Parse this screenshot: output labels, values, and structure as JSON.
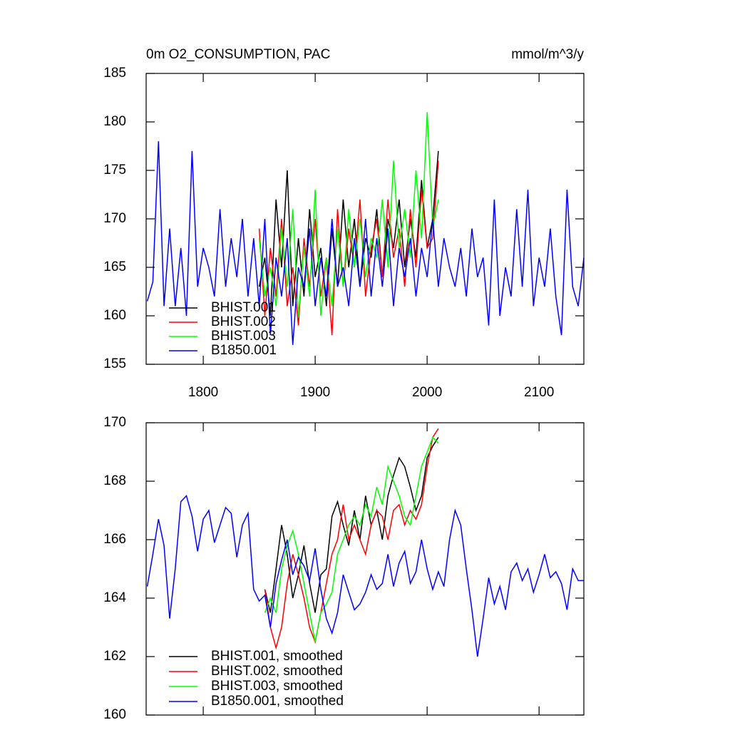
{
  "chart_data": [
    {
      "type": "line",
      "title": "0m O2_CONSUMPTION, PAC",
      "units": "mmol/m^3/y",
      "xlim": [
        1749,
        2140
      ],
      "xticks": [
        1800,
        1900,
        2000,
        2100
      ],
      "xtick_labels": true,
      "ylim": [
        155,
        185
      ],
      "yticks": [
        155,
        160,
        165,
        170,
        175,
        180,
        185
      ],
      "legend": "lower left",
      "series": [
        {
          "name": "BHIST.001",
          "color": "#000000",
          "x": [
            1850,
            1855,
            1860,
            1865,
            1870,
            1875,
            1880,
            1885,
            1890,
            1895,
            1900,
            1905,
            1910,
            1915,
            1920,
            1925,
            1930,
            1935,
            1940,
            1945,
            1950,
            1955,
            1960,
            1965,
            1970,
            1975,
            1980,
            1985,
            1990,
            1995,
            2000,
            2005,
            2010
          ],
          "values": [
            163,
            166,
            160,
            172,
            165,
            175,
            161,
            168,
            162,
            171,
            164,
            167,
            161,
            169,
            163,
            172,
            165,
            170,
            163,
            168,
            166,
            171,
            164,
            170,
            167,
            172,
            165,
            170,
            166,
            174,
            167,
            170,
            177
          ]
        },
        {
          "name": "BHIST.002",
          "color": "#ff0000",
          "x": [
            1850,
            1855,
            1860,
            1865,
            1870,
            1875,
            1880,
            1885,
            1890,
            1895,
            1900,
            1905,
            1910,
            1915,
            1920,
            1925,
            1930,
            1935,
            1940,
            1945,
            1950,
            1955,
            1960,
            1965,
            1970,
            1975,
            1980,
            1985,
            1990,
            1995,
            2000,
            2005,
            2010
          ],
          "values": [
            169,
            160,
            167,
            162,
            170,
            161,
            165,
            159,
            168,
            163,
            170,
            162,
            166,
            158,
            171,
            163,
            169,
            165,
            172,
            162,
            167,
            170,
            164,
            172,
            166,
            169,
            163,
            171,
            165,
            173,
            167,
            168,
            176
          ]
        },
        {
          "name": "BHIST.003",
          "color": "#00ff00",
          "x": [
            1850,
            1855,
            1860,
            1865,
            1870,
            1875,
            1880,
            1885,
            1890,
            1895,
            1900,
            1905,
            1910,
            1915,
            1920,
            1925,
            1930,
            1935,
            1940,
            1945,
            1950,
            1955,
            1960,
            1965,
            1970,
            1975,
            1980,
            1985,
            1990,
            1995,
            2000,
            2005,
            2010
          ],
          "values": [
            168,
            162,
            165,
            161,
            169,
            163,
            171,
            160,
            167,
            162,
            173,
            160,
            166,
            161,
            169,
            163,
            171,
            165,
            170,
            164,
            168,
            166,
            172,
            165,
            176,
            167,
            171,
            166,
            175,
            168,
            181,
            169,
            172
          ]
        },
        {
          "name": "B1850.001",
          "color": "#0000ff",
          "x": [
            1750,
            1755,
            1760,
            1765,
            1770,
            1775,
            1780,
            1785,
            1790,
            1795,
            1800,
            1805,
            1810,
            1815,
            1820,
            1825,
            1830,
            1835,
            1840,
            1845,
            1850,
            1855,
            1860,
            1865,
            1870,
            1875,
            1880,
            1885,
            1890,
            1895,
            1900,
            1905,
            1910,
            1915,
            1920,
            1925,
            1930,
            1935,
            1940,
            1945,
            1950,
            1955,
            1960,
            1965,
            1970,
            1975,
            1980,
            1985,
            1990,
            1995,
            2000,
            2005,
            2010,
            2015,
            2020,
            2025,
            2030,
            2035,
            2040,
            2045,
            2050,
            2055,
            2060,
            2065,
            2070,
            2075,
            2080,
            2085,
            2090,
            2095,
            2100,
            2105,
            2110,
            2115,
            2120,
            2125,
            2130,
            2135,
            2140
          ],
          "values": [
            161.5,
            163.5,
            178,
            161,
            169,
            161,
            167,
            160,
            177,
            163,
            167,
            165,
            162,
            171,
            163,
            168,
            164,
            170,
            162,
            168,
            161,
            170,
            158,
            166,
            162,
            168,
            157,
            165,
            163,
            169,
            161,
            166,
            162,
            170,
            163,
            165,
            161,
            168,
            163,
            170,
            162,
            168,
            163,
            169,
            161,
            167,
            164,
            168,
            162,
            167,
            164,
            170,
            163,
            168,
            165,
            163,
            167,
            162,
            169,
            164,
            166,
            159,
            172,
            160,
            165,
            162,
            171,
            163,
            173,
            161,
            166,
            163,
            169,
            162,
            158,
            173,
            163,
            161,
            166
          ]
        }
      ]
    },
    {
      "type": "line",
      "xlim": [
        1749,
        2140
      ],
      "xticks": [
        1800,
        1900,
        2000,
        2100
      ],
      "xtick_labels": false,
      "ylim": [
        160,
        170
      ],
      "yticks": [
        160,
        162,
        164,
        166,
        168,
        170
      ],
      "legend": "lower left",
      "series": [
        {
          "name": "BHIST.001, smoothed",
          "color": "#000000",
          "x": [
            1855,
            1860,
            1865,
            1870,
            1875,
            1880,
            1885,
            1890,
            1895,
            1900,
            1905,
            1910,
            1915,
            1920,
            1925,
            1930,
            1935,
            1940,
            1945,
            1950,
            1955,
            1960,
            1965,
            1970,
            1975,
            1980,
            1985,
            1990,
            1995,
            2000,
            2005,
            2010
          ],
          "values": [
            164.3,
            163.5,
            165,
            166.5,
            165.5,
            164,
            164.8,
            165.8,
            164.5,
            163.5,
            164.8,
            165,
            166.8,
            167.3,
            166.5,
            165.8,
            167,
            166,
            167.5,
            166.5,
            167,
            166,
            167.5,
            168.2,
            168.8,
            168.5,
            167.8,
            167,
            167.5,
            168.8,
            169.2,
            169.5
          ]
        },
        {
          "name": "BHIST.002, smoothed",
          "color": "#ff0000",
          "x": [
            1855,
            1860,
            1865,
            1870,
            1875,
            1880,
            1885,
            1890,
            1895,
            1900,
            1905,
            1910,
            1915,
            1920,
            1925,
            1930,
            1935,
            1940,
            1945,
            1950,
            1955,
            1960,
            1965,
            1970,
            1975,
            1980,
            1985,
            1990,
            1995,
            2000,
            2005,
            2010
          ],
          "values": [
            164.3,
            163,
            162.3,
            163,
            164.5,
            165.5,
            164.8,
            164,
            163,
            162.5,
            163.5,
            164.5,
            165.5,
            166,
            167.2,
            166,
            166.5,
            166,
            165.5,
            166.5,
            167,
            166.8,
            166,
            167,
            167.2,
            166.5,
            167,
            166.7,
            167.2,
            168.5,
            169.5,
            169.8
          ]
        },
        {
          "name": "BHIST.003, smoothed",
          "color": "#00ff00",
          "x": [
            1855,
            1860,
            1865,
            1870,
            1875,
            1880,
            1885,
            1890,
            1895,
            1900,
            1905,
            1910,
            1915,
            1920,
            1925,
            1930,
            1935,
            1940,
            1945,
            1950,
            1955,
            1960,
            1965,
            1970,
            1975,
            1980,
            1985,
            1990,
            1995,
            2000,
            2005,
            2010
          ],
          "values": [
            163.5,
            164,
            163.5,
            165,
            165.8,
            166.3,
            165.5,
            164.5,
            163.5,
            162.5,
            163.5,
            163.8,
            164.2,
            165.5,
            166,
            166.5,
            166.8,
            166.5,
            167.2,
            166.8,
            167.8,
            167.2,
            168.5,
            168,
            167.5,
            166.8,
            166.5,
            167.5,
            168.5,
            169,
            169.5,
            169.3
          ]
        },
        {
          "name": "B1850.001, smoothed",
          "color": "#0000ff",
          "x": [
            1750,
            1755,
            1760,
            1765,
            1770,
            1775,
            1780,
            1785,
            1790,
            1795,
            1800,
            1805,
            1810,
            1815,
            1820,
            1825,
            1830,
            1835,
            1840,
            1845,
            1850,
            1855,
            1860,
            1865,
            1870,
            1875,
            1880,
            1885,
            1890,
            1895,
            1900,
            1905,
            1910,
            1915,
            1920,
            1925,
            1930,
            1935,
            1940,
            1945,
            1950,
            1955,
            1960,
            1965,
            1970,
            1975,
            1980,
            1985,
            1990,
            1995,
            2000,
            2005,
            2010,
            2015,
            2020,
            2025,
            2030,
            2035,
            2040,
            2045,
            2050,
            2055,
            2060,
            2065,
            2070,
            2075,
            2080,
            2085,
            2090,
            2095,
            2100,
            2105,
            2110,
            2115,
            2120,
            2125,
            2130,
            2135,
            2140
          ],
          "values": [
            164.4,
            165.5,
            166.7,
            165.8,
            163.3,
            165,
            167.3,
            167.5,
            166.8,
            165.6,
            166.7,
            167,
            165.9,
            166.5,
            167.1,
            166.9,
            165.4,
            166.5,
            166.9,
            164.3,
            163.9,
            164.1,
            163,
            164.5,
            165.3,
            166,
            164.8,
            165.4,
            165.1,
            164.6,
            165.7,
            164.3,
            163.3,
            162.8,
            163.5,
            164.8,
            164.2,
            163.6,
            163.8,
            164.2,
            164.8,
            164.3,
            164.5,
            165.5,
            164.4,
            165.2,
            165.6,
            164.5,
            164.9,
            166,
            165,
            164.3,
            164.9,
            164.4,
            166,
            167,
            166.5,
            165,
            163.6,
            162,
            163.3,
            164.7,
            163.8,
            164.4,
            163.6,
            164.9,
            165.2,
            164.6,
            165,
            164.2,
            164.8,
            165.5,
            164.7,
            164.9,
            164.5,
            163.6,
            165,
            164.6,
            164.6
          ]
        }
      ]
    }
  ]
}
